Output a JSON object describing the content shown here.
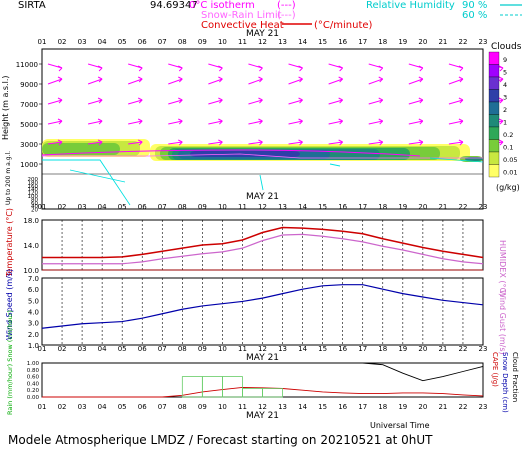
{
  "header": {
    "station": "SIRTA",
    "coords": "94.69347",
    "legend": {
      "zero_isotherm": "0°C isotherm",
      "zero_isotherm_marker": "(---)",
      "snow_rain_limit": "Snow-Rain Limit",
      "snow_rain_marker": "(---)",
      "convective_heat": "Convective Heat",
      "convective_heat_unit": "(°C/minute)",
      "relative_humidity": "Relative Humidity",
      "rh_90": "90 %",
      "rh_60": "60 %"
    },
    "colors": {
      "isotherm": "#ff00ff",
      "convective": "#e00000",
      "humidity": "#00d8d8"
    }
  },
  "date_label": "MAY 21",
  "hours": [
    "01",
    "02",
    "03",
    "04",
    "05",
    "06",
    "07",
    "08",
    "09",
    "10",
    "11",
    "12",
    "13",
    "14",
    "15",
    "16",
    "17",
    "18",
    "19",
    "20",
    "21",
    "22",
    "23"
  ],
  "footer": {
    "universal_time": "Universal Time",
    "title": "Modele Atmospherique LMDZ / Forecast starting on 20210521 at 0hUT"
  },
  "chart_data": [
    {
      "type": "heatmap",
      "ylabel": "Height (m a.s.l.)",
      "ylabel_low": "Up to 200 m a.g.l.",
      "yticks_upper": [
        "11000",
        "9000",
        "7000",
        "5000",
        "3000",
        "1000"
      ],
      "yticks_lower": [
        "200",
        "180",
        "160",
        "140",
        "120",
        "100",
        "80",
        "60",
        "40",
        "20"
      ],
      "colorbar": {
        "title": "Clouds",
        "unit": "(g/kg)",
        "levels": [
          "9",
          "5",
          "4",
          "3",
          "2",
          "1",
          "0.2",
          "0.1",
          "0.05",
          "0.01"
        ],
        "colors": [
          "#ff00ff",
          "#a000ff",
          "#6a2fd0",
          "#2e3fa8",
          "#1f6e96",
          "#1f8a78",
          "#2fa858",
          "#78cc3a",
          "#c8e840",
          "#ffff66"
        ]
      },
      "wind_color": "#ff00ff",
      "iso_color": "#00e0e0"
    },
    {
      "type": "line",
      "ylabel_left": "Temperature (°C)",
      "ylabel_right": "HUMIDEX (°C)",
      "yticks": [
        "18.0",
        "14.0",
        "10.0"
      ],
      "ylim": [
        10.0,
        18.0
      ],
      "series": [
        {
          "name": "Temperature",
          "color": "#cc0000",
          "values": [
            12.0,
            12.0,
            12.0,
            12.0,
            12.1,
            12.5,
            13.0,
            13.5,
            14.0,
            14.2,
            14.8,
            16.0,
            16.8,
            16.7,
            16.5,
            16.2,
            15.8,
            15.0,
            14.3,
            13.6,
            13.0,
            12.5,
            12.0
          ]
        },
        {
          "name": "HUMIDEX",
          "color": "#cc66cc",
          "values": [
            11.0,
            11.0,
            11.0,
            11.0,
            11.0,
            11.3,
            11.8,
            12.2,
            12.6,
            12.9,
            13.5,
            14.7,
            15.6,
            15.7,
            15.4,
            15.0,
            14.5,
            13.8,
            13.2,
            12.5,
            11.8,
            11.3,
            11.0
          ]
        }
      ]
    },
    {
      "type": "line",
      "ylabel_left": "Wind Speed (m/s)",
      "ylabel_right": "Wind Gust (m/s)",
      "yticks": [
        "7.0",
        "6.0",
        "5.0",
        "4.0",
        "3.0",
        "2.0",
        "1.0"
      ],
      "ylim": [
        1.0,
        7.0
      ],
      "series": [
        {
          "name": "Wind Speed",
          "color": "#0000aa",
          "values": [
            2.5,
            2.7,
            2.9,
            3.0,
            3.1,
            3.4,
            3.8,
            4.2,
            4.5,
            4.7,
            4.9,
            5.2,
            5.6,
            6.0,
            6.3,
            6.4,
            6.4,
            6.0,
            5.6,
            5.3,
            5.0,
            4.8,
            4.6
          ]
        }
      ]
    },
    {
      "type": "line",
      "ylabel_left": "Rain (mm/hour) Snow (cm/hour)",
      "ylabel_right_1": "CAPE (J/g)",
      "ylabel_right_2": "Snow Depth (cm)",
      "ylabel_right_3": "Cloud Fraction",
      "yticks": [
        "1.00",
        "0.80",
        "0.60",
        "0.40",
        "0.20",
        "0.00"
      ],
      "ylim": [
        0.0,
        1.0
      ],
      "series": [
        {
          "name": "Cloud Fraction",
          "color": "#000000",
          "values": [
            1.0,
            1.0,
            1.0,
            1.0,
            1.0,
            1.0,
            1.0,
            1.0,
            1.0,
            1.0,
            1.0,
            1.0,
            1.0,
            1.0,
            1.0,
            1.0,
            1.0,
            0.95,
            0.7,
            0.48,
            0.6,
            0.75,
            0.9
          ]
        },
        {
          "name": "CAPE",
          "color": "#cc0000",
          "values": [
            0.0,
            0.0,
            0.0,
            0.0,
            0.0,
            0.0,
            0.0,
            0.05,
            0.15,
            0.22,
            0.28,
            0.27,
            0.25,
            0.2,
            0.15,
            0.12,
            0.1,
            0.1,
            0.12,
            0.12,
            0.1,
            0.06,
            0.03
          ]
        },
        {
          "name": "Rain",
          "color": "#66cc66",
          "values": [
            0,
            0,
            0,
            0,
            0,
            0,
            0,
            0.6,
            0.6,
            0.6,
            0.25,
            0.25,
            0,
            0,
            0,
            0,
            0,
            0,
            0,
            0,
            0,
            0,
            0
          ]
        }
      ]
    }
  ]
}
